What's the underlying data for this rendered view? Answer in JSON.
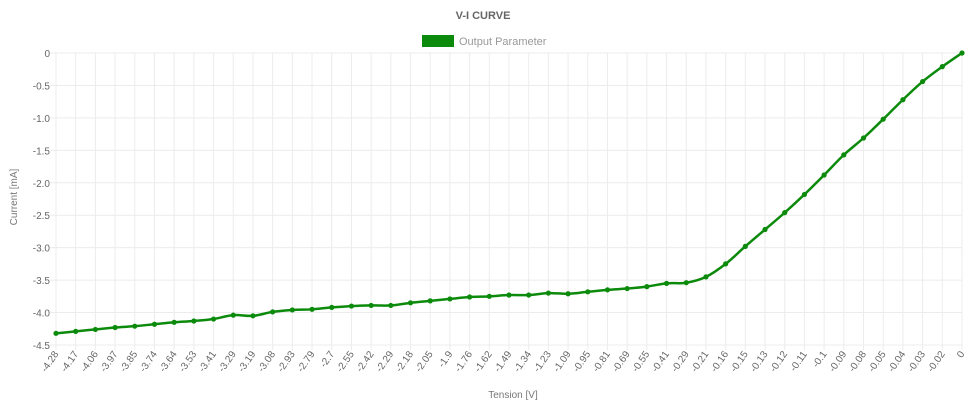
{
  "chart_data": {
    "type": "line",
    "title": "V-I CURVE",
    "xlabel": "Tension [V]",
    "ylabel": "Current [mA]",
    "ylim": [
      -4.5,
      0
    ],
    "yticks": [
      "0",
      "-0.5",
      "-1.0",
      "-1.5",
      "-2.0",
      "-2.5",
      "-3.0",
      "-3.5",
      "-4.0",
      "-4.5"
    ],
    "ytick_values": [
      0,
      -0.5,
      -1.0,
      -1.5,
      -2.0,
      -2.5,
      -3.0,
      -3.5,
      -4.0,
      -4.5
    ],
    "grid": true,
    "legend_position": "top",
    "categories": [
      "-4.28",
      "-4.17",
      "-4.06",
      "-3.97",
      "-3.85",
      "-3.74",
      "-3.64",
      "-3.53",
      "-3.41",
      "-3.29",
      "-3.19",
      "-3.08",
      "-2.93",
      "-2.79",
      "-2.7",
      "-2.55",
      "-2.42",
      "-2.29",
      "-2.18",
      "-2.05",
      "-1.9",
      "-1.76",
      "-1.62",
      "-1.49",
      "-1.34",
      "-1.23",
      "-1.09",
      "-0.95",
      "-0.81",
      "-0.69",
      "-0.55",
      "-0.41",
      "-0.29",
      "-0.21",
      "-0.16",
      "-0.15",
      "-0.13",
      "-0.12",
      "-0.11",
      "-0.1",
      "-0.09",
      "-0.08",
      "-0.05",
      "-0.04",
      "-0.03",
      "-0.02",
      "0"
    ],
    "series": [
      {
        "name": "Output Parameter",
        "color": "#0b8a0b",
        "values": [
          -4.32,
          -4.29,
          -4.26,
          -4.23,
          -4.21,
          -4.18,
          -4.15,
          -4.13,
          -4.1,
          -4.04,
          -4.05,
          -3.99,
          -3.96,
          -3.95,
          -3.92,
          -3.9,
          -3.89,
          -3.89,
          -3.85,
          -3.82,
          -3.79,
          -3.76,
          -3.75,
          -3.73,
          -3.73,
          -3.7,
          -3.71,
          -3.68,
          -3.65,
          -3.63,
          -3.6,
          -3.55,
          -3.54,
          -3.45,
          -3.25,
          -2.98,
          -2.72,
          -2.46,
          -2.18,
          -1.88,
          -1.57,
          -1.31,
          -1.02,
          -0.72,
          -0.44,
          -0.21,
          0.0
        ]
      }
    ]
  }
}
